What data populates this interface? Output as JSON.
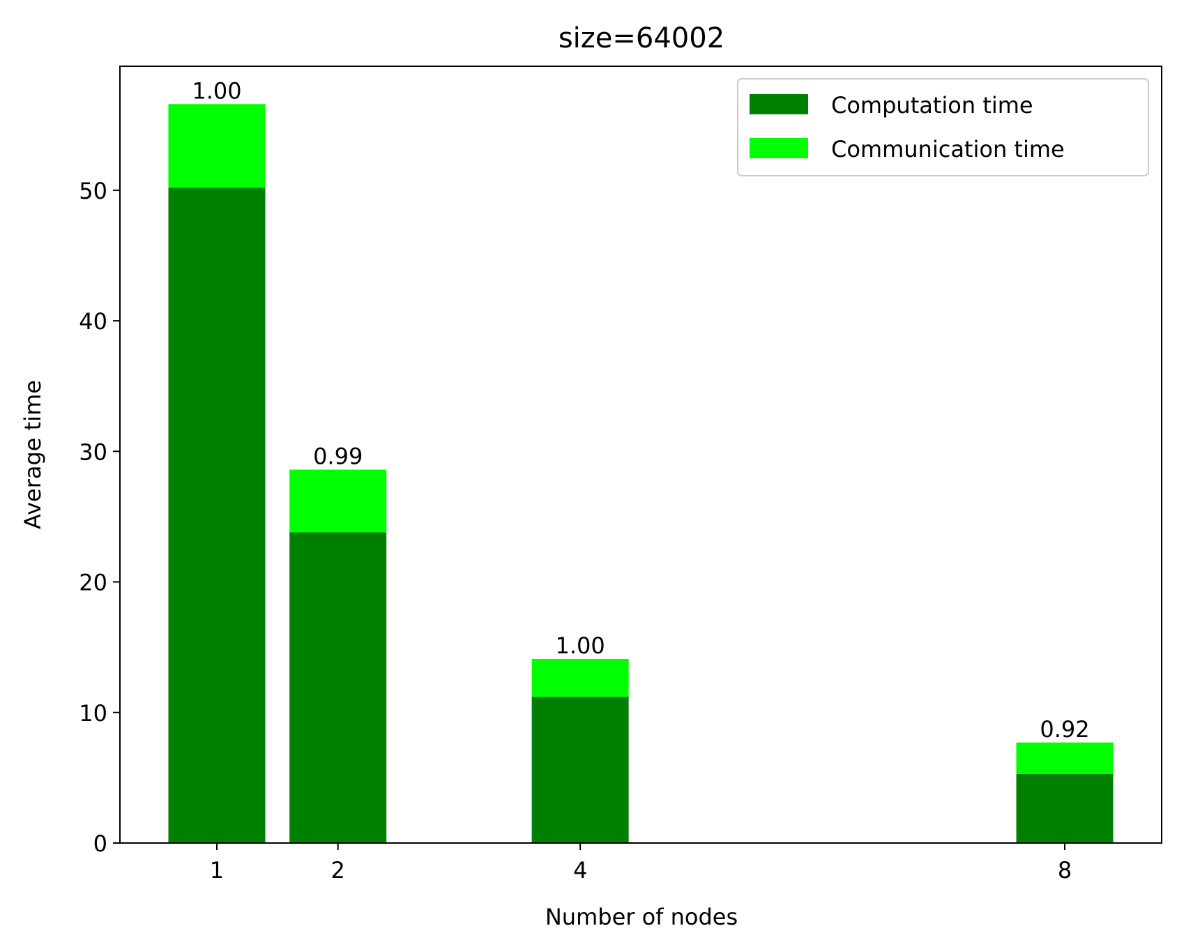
{
  "chart_data": {
    "type": "bar",
    "stacked": true,
    "title": "size=64002",
    "xlabel": "Number of nodes",
    "ylabel": "Average time",
    "x": [
      1,
      2,
      4,
      8
    ],
    "x_tick_labels": [
      "1",
      "2",
      "4",
      "8"
    ],
    "xlim": [
      0.2,
      8.8
    ],
    "ylim": [
      0,
      59.5
    ],
    "y_ticks": [
      0,
      10,
      20,
      30,
      40,
      50
    ],
    "y_tick_labels": [
      "0",
      "10",
      "20",
      "30",
      "40",
      "50"
    ],
    "bar_width": 0.8,
    "grid": false,
    "legend_position": "top-right",
    "series": [
      {
        "name": "Computation time",
        "color": "#008000",
        "values": [
          50.2,
          23.8,
          11.2,
          5.3
        ]
      },
      {
        "name": "Communication time",
        "color": "#00ff00",
        "values": [
          6.4,
          4.8,
          2.9,
          2.4
        ]
      }
    ],
    "bar_labels": [
      "1.00",
      "0.99",
      "1.00",
      "0.92"
    ]
  }
}
